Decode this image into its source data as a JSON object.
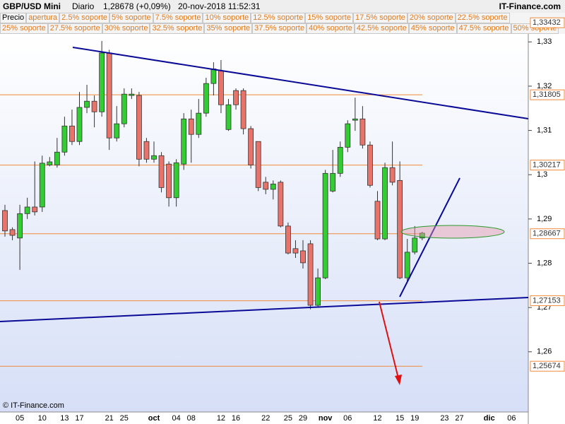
{
  "header": {
    "title": "GBP/USD Mini",
    "period": "Diario",
    "price": "1,28678 (+0,09%)",
    "datetime": "20-nov-2018 11:52:31",
    "brand": "IT-Finance.com"
  },
  "legend_rows": [
    [
      "Precio",
      "apertura",
      "2.5% soporte",
      "5% soporte",
      "7.5% soporte",
      "10% soporte",
      "12.5% soporte",
      "15% soporte",
      "17.5% soporte",
      "20% soporte",
      "22.5% soporte"
    ],
    [
      "25% soporte",
      "27.5% soporte",
      "30% soporte",
      "32.5% soporte",
      "35% soporte",
      "37.5% soporte",
      "40% soporte",
      "42.5% soporte",
      "45% soporte",
      "47.5% soporte",
      "50% soporte"
    ]
  ],
  "footer": "© IT-Finance.com",
  "chart_data": {
    "type": "candlestick",
    "categories": [
      null,
      null,
      "05",
      null,
      null,
      "10",
      null,
      null,
      "13",
      null,
      "17",
      null,
      null,
      null,
      "21",
      null,
      "25",
      null,
      null,
      null,
      "oct",
      null,
      null,
      "04",
      null,
      "08",
      null,
      null,
      null,
      "12",
      null,
      "16",
      null,
      null,
      null,
      "22",
      null,
      null,
      "25",
      null,
      "29",
      null,
      null,
      "nov",
      null,
      null,
      "06",
      null,
      null,
      null,
      "12",
      null,
      null,
      "15",
      null,
      "19",
      null,
      null,
      null,
      "23",
      null,
      "27",
      null,
      null,
      null,
      "dic",
      null,
      null,
      "06",
      null
    ],
    "open": [
      1.2919,
      1.2876,
      1.2857,
      1.2912,
      1.2927,
      1.2927,
      1.3022,
      1.3022,
      1.3051,
      1.311,
      1.3075,
      1.3152,
      1.3166,
      1.3142,
      1.3275,
      1.3083,
      1.3115,
      1.3179,
      1.3179,
      1.3075,
      1.3035,
      1.3043,
      1.3024,
      1.2948,
      1.3024,
      1.3126,
      1.3091,
      1.3139,
      1.3206,
      1.3235,
      1.3102,
      1.319,
      1.319,
      1.3104,
      1.3075,
      1.2983,
      1.2967,
      1.2983,
      1.2884,
      1.2833,
      1.2828,
      1.2844,
      1.2705,
      1.2767,
      1.2963,
      1.3003,
      1.3062,
      1.3123,
      1.3126,
      1.3067,
      1.294,
      1.2855,
      1.3016,
      1.2987,
      1.2767,
      1.2825,
      1.2857,
      null,
      null,
      null,
      null,
      null,
      null,
      null,
      null,
      null,
      null,
      null,
      null,
      null
    ],
    "high": [
      1.2932,
      1.2881,
      1.2932,
      1.2948,
      1.303,
      1.3043,
      1.304,
      1.3083,
      1.3131,
      1.3147,
      1.3187,
      1.3203,
      1.3179,
      1.3302,
      1.3282,
      1.3155,
      1.3195,
      1.3195,
      1.3187,
      1.3083,
      1.3075,
      1.3051,
      1.303,
      1.3035,
      1.3139,
      1.3147,
      1.3171,
      1.3219,
      1.3254,
      1.3259,
      1.3171,
      1.3195,
      1.3195,
      1.311,
      1.3075,
      1.2995,
      1.2987,
      1.2987,
      1.2892,
      1.2852,
      1.2852,
      1.2852,
      1.2788,
      1.3011,
      1.3056,
      1.3075,
      1.3123,
      1.3174,
      1.3155,
      1.3075,
      1.2963,
      1.3027,
      1.3075,
      1.303,
      1.2855,
      1.2884,
      1.2871,
      null,
      null,
      null,
      null,
      null,
      null,
      null,
      null,
      null,
      null,
      null,
      null,
      null
    ],
    "low": [
      1.286,
      1.2852,
      1.2785,
      1.29,
      1.2908,
      1.2916,
      1.3019,
      1.3016,
      1.3043,
      1.3067,
      1.3067,
      1.3139,
      1.3107,
      1.3131,
      1.3056,
      1.3075,
      1.3107,
      1.3171,
      1.3019,
      1.3027,
      1.3027,
      1.296,
      1.2928,
      1.2928,
      1.3011,
      1.3027,
      1.3083,
      1.3131,
      1.3179,
      1.3139,
      1.3099,
      1.3147,
      1.3091,
      1.3014,
      1.2963,
      1.2956,
      1.2944,
      1.2881,
      1.282,
      1.2812,
      1.2788,
      1.2696,
      1.27,
      1.2764,
      1.296,
      1.2995,
      1.3051,
      1.3099,
      1.3059,
      1.2971,
      1.2852,
      1.2852,
      1.2976,
      1.2764,
      1.2759,
      1.282,
      1.2852,
      null,
      null,
      null,
      null,
      null,
      null,
      null,
      null,
      null,
      null,
      null,
      null,
      null
    ],
    "close": [
      1.2873,
      1.2863,
      1.2912,
      1.2927,
      1.2916,
      1.3026,
      1.3029,
      1.3051,
      1.311,
      1.3075,
      1.3152,
      1.3166,
      1.3142,
      1.3275,
      1.3083,
      1.3115,
      1.3182,
      1.3182,
      1.3035,
      1.3035,
      1.3043,
      1.2971,
      1.2948,
      1.3027,
      1.3126,
      1.3091,
      1.3139,
      1.3206,
      1.3239,
      1.3158,
      1.3158,
      1.3158,
      1.3104,
      1.3022,
      1.2971,
      1.2967,
      1.2979,
      1.2884,
      1.2823,
      1.2823,
      1.2801,
      1.2705,
      1.2767,
      1.3003,
      1.3003,
      1.3062,
      1.3115,
      1.3126,
      1.3067,
      1.2976,
      1.2855,
      1.3016,
      1.2983,
      1.2767,
      1.2825,
      1.2857,
      1.2868,
      null,
      null,
      null,
      null,
      null,
      null,
      null,
      null,
      null,
      null,
      null,
      null,
      null
    ],
    "up_color": "#33cc33",
    "down_color": "#e8736b",
    "ylim": [
      1.2464,
      1.3318
    ],
    "yticks": [
      {
        "value": 1.26,
        "label": "1,26"
      },
      {
        "value": 1.27,
        "label": "1,27"
      },
      {
        "value": 1.28,
        "label": "1,28"
      },
      {
        "value": 1.29,
        "label": "1,29"
      },
      {
        "value": 1.3,
        "label": "1,3"
      },
      {
        "value": 1.31,
        "label": "1,31"
      },
      {
        "value": 1.32,
        "label": "1,32"
      },
      {
        "value": 1.33,
        "label": "1,33"
      }
    ],
    "levels": [
      {
        "value": 1.33432,
        "label": "1,33432"
      },
      {
        "value": 1.31805,
        "label": "1,31805"
      },
      {
        "value": 1.30217,
        "label": "1,30217"
      },
      {
        "value": 1.28667,
        "label": "1,28667"
      },
      {
        "value": 1.27153,
        "label": "1,27153"
      },
      {
        "value": 1.25674,
        "label": "1,25674"
      }
    ],
    "level_color": "#f08a3a"
  }
}
